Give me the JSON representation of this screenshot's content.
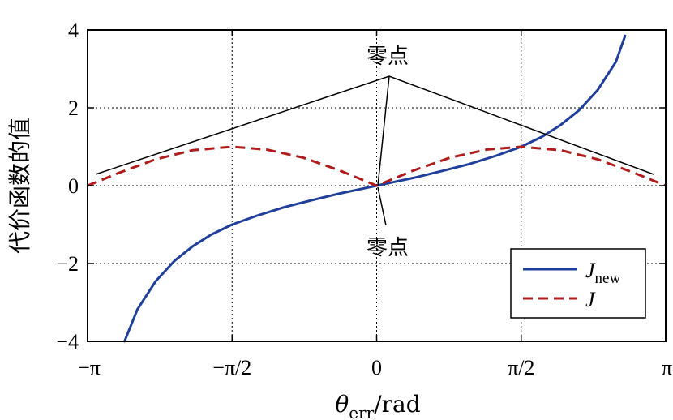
{
  "chart_data": {
    "type": "line",
    "xlabel_symbol": "θ",
    "xlabel_sub": "err",
    "xlabel_unit": "/rad",
    "ylabel": "代价函数的值",
    "xlim": [
      -3.14159,
      3.14159
    ],
    "ylim": [
      -4,
      4
    ],
    "grid": true,
    "legend_position": "bottom-right",
    "x_ticks": [
      {
        "value": -3.14159,
        "label": "−π"
      },
      {
        "value": -1.5708,
        "label": "−π/2"
      },
      {
        "value": 0,
        "label": "0"
      },
      {
        "value": 1.5708,
        "label": "π/2"
      },
      {
        "value": 3.14159,
        "label": "π"
      }
    ],
    "y_ticks": [
      {
        "value": -4,
        "label": "−4"
      },
      {
        "value": -2,
        "label": "−2"
      },
      {
        "value": 0,
        "label": "0"
      },
      {
        "value": 2,
        "label": "2"
      },
      {
        "value": 4,
        "label": "4"
      }
    ],
    "series": [
      {
        "name": "J_new",
        "legend_main": "J",
        "legend_sub": "new",
        "color": "#1f3f9a",
        "style": "solid",
        "x": [
          -2.74,
          -2.6,
          -2.4,
          -2.2,
          -2.0,
          -1.8,
          -1.5708,
          -1.3,
          -1.0,
          -0.7,
          -0.4,
          -0.2,
          0,
          0.2,
          0.4,
          0.7,
          1.0,
          1.3,
          1.5708,
          1.8,
          2.0,
          2.2,
          2.4,
          2.6,
          2.7
        ],
        "y": [
          -4.0,
          -3.18,
          -2.45,
          -1.94,
          -1.56,
          -1.26,
          -1.0,
          -0.77,
          -0.55,
          -0.37,
          -0.2,
          -0.1,
          0.0,
          0.1,
          0.2,
          0.37,
          0.55,
          0.77,
          1.0,
          1.26,
          1.56,
          1.94,
          2.45,
          3.18,
          3.85
        ]
      },
      {
        "name": "J",
        "legend_main": "J",
        "legend_sub": "",
        "color": "#b01c1c",
        "style": "dashed",
        "x": [
          -3.14159,
          -2.8,
          -2.4,
          -2.0,
          -1.5708,
          -1.2,
          -0.8,
          -0.4,
          0,
          0.4,
          0.8,
          1.2,
          1.5708,
          2.0,
          2.4,
          2.8,
          3.14159
        ],
        "y": [
          0.0,
          0.33,
          0.68,
          0.91,
          1.0,
          0.93,
          0.72,
          0.39,
          0.0,
          0.39,
          0.72,
          0.93,
          1.0,
          0.91,
          0.68,
          0.33,
          0.0
        ]
      }
    ],
    "annotations": [
      {
        "text": "零点",
        "position": "top"
      },
      {
        "text": "零点",
        "position": "bottom"
      }
    ]
  }
}
